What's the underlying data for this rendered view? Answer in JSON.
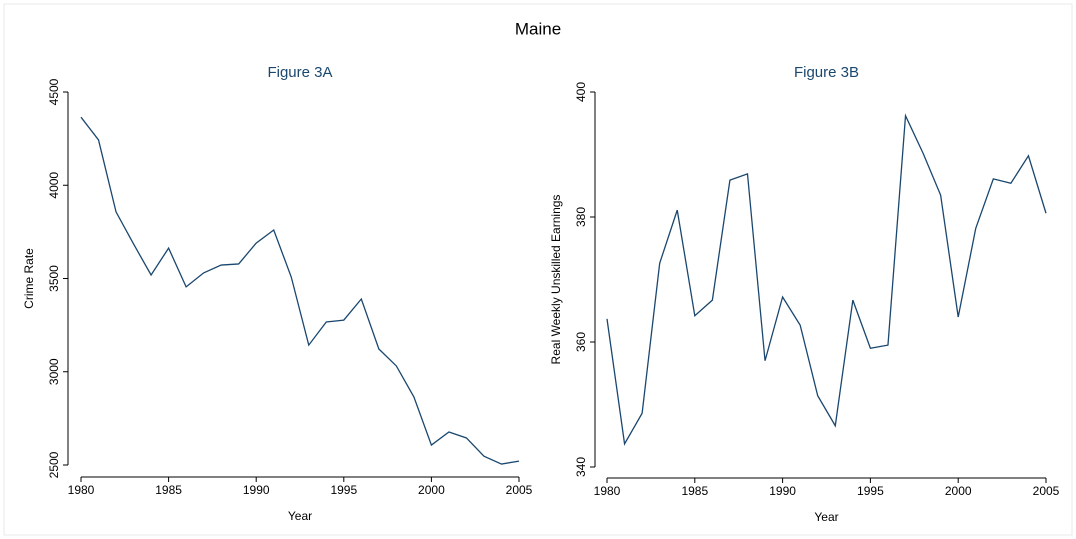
{
  "title": "Maine",
  "chart_data": [
    {
      "type": "line",
      "title": "Figure 3A",
      "x_label": "Year",
      "y_label": "Crime Rate",
      "x": [
        1980,
        1981,
        1982,
        1983,
        1984,
        1985,
        1986,
        1987,
        1988,
        1989,
        1990,
        1991,
        1992,
        1993,
        1994,
        1995,
        1996,
        1997,
        1998,
        1999,
        2000,
        2001,
        2002,
        2003,
        2004,
        2005
      ],
      "series": [
        {
          "name": "Crime Rate",
          "color": "#1a476f",
          "values": [
            4365,
            4243,
            3857,
            3685,
            3519,
            3663,
            3455,
            3530,
            3572,
            3578,
            3690,
            3760,
            3508,
            3143,
            3267,
            3277,
            3390,
            3122,
            3031,
            2865,
            2607,
            2677,
            2645,
            2547,
            2505,
            2521
          ]
        }
      ],
      "xlim": [
        1980,
        2005
      ],
      "xticks": [
        1980,
        1985,
        1990,
        1995,
        2000,
        2005
      ],
      "ylim": [
        2500,
        4500
      ],
      "yticks": [
        2500,
        3000,
        3500,
        4000,
        4500
      ]
    },
    {
      "type": "line",
      "title": "Figure 3B",
      "x_label": "Year",
      "y_label": "Real Weekly Unskilled Earnings",
      "x": [
        1980,
        1981,
        1982,
        1983,
        1984,
        1985,
        1986,
        1987,
        1988,
        1989,
        1990,
        1991,
        1992,
        1993,
        1994,
        1995,
        1996,
        1997,
        1998,
        1999,
        2000,
        2001,
        2002,
        2003,
        2004,
        2005
      ],
      "series": [
        {
          "name": "Real Weekly Unskilled Earnings",
          "color": "#1a476f",
          "values": [
            363.7,
            343.7,
            348.6,
            372.6,
            381.1,
            364.2,
            366.7,
            385.9,
            386.9,
            357.0,
            367.2,
            362.7,
            351.4,
            346.6,
            366.7,
            359.0,
            359.5,
            396.2,
            390.2,
            383.5,
            364.0,
            378.2,
            386.1,
            385.4,
            389.8,
            380.6
          ]
        }
      ],
      "xlim": [
        1980,
        2005
      ],
      "xticks": [
        1980,
        1985,
        1990,
        1995,
        2000,
        2005
      ],
      "ylim": [
        340,
        400
      ],
      "yticks": [
        340,
        360,
        380,
        400
      ]
    }
  ]
}
